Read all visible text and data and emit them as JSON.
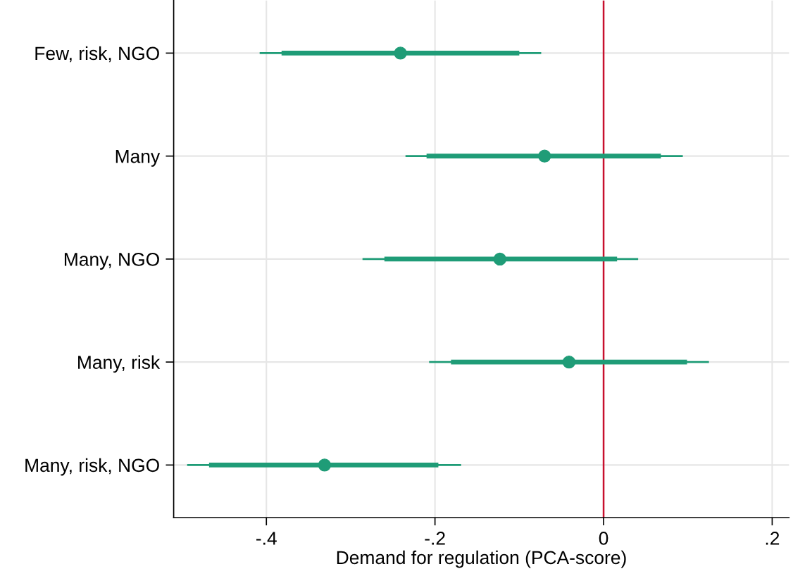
{
  "chart_data": {
    "type": "scatter",
    "orientation": "horizontal",
    "xlabel": "Demand for regulation (PCA-score)",
    "categories": [
      "Few, risk, NGO",
      "Many",
      "Many, NGO",
      "Many, risk",
      "Many, risk, NGO"
    ],
    "series": [
      {
        "type": "bar",
        "color": "#1f9c77",
        "base": [
          -0.382,
          -0.21,
          -0.26,
          -0.181,
          -0.468
        ],
        "values": [
          0.282,
          0.278,
          0.276,
          0.28,
          0.272
        ]
      },
      {
        "color": "#1f9c77",
        "marker": "circle",
        "values": [
          -0.241,
          -0.07,
          -0.123,
          -0.041,
          -0.331
        ],
        "errors": [
          [
            -0.408,
            -0.074
          ],
          [
            -0.235,
            0.094
          ],
          [
            -0.286,
            0.041
          ],
          [
            -0.207,
            0.125
          ],
          [
            -0.494,
            -0.169
          ]
        ]
      }
    ],
    "xlim": [
      -0.51,
      0.22
    ],
    "xticks": [
      {
        "value": -0.4,
        "label": "-.4"
      },
      {
        "value": -0.2,
        "label": "-.2"
      },
      0,
      {
        "value": 0.2,
        "label": ".2"
      }
    ],
    "ref_lines": [
      {
        "axis": "x",
        "value": 0,
        "color": "#c8102e"
      }
    ],
    "grid": true
  }
}
